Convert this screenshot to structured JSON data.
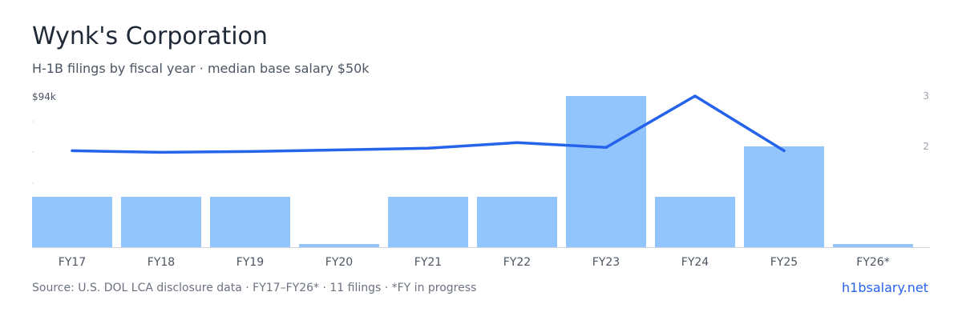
{
  "header": {
    "title": "Wynk's Corporation",
    "subtitle": "H-1B filings by fiscal year · median base salary $50k"
  },
  "footer": {
    "source": "Source: U.S. DOL LCA disclosure data · FY17–FY26* · 11 filings · *FY in progress",
    "brand": "h1bsalary.net"
  },
  "colors": {
    "bar": "#93c5fd",
    "line": "#2563eb"
  },
  "chart_data": {
    "type": "bar",
    "categories": [
      "FY17",
      "FY18",
      "FY19",
      "FY20",
      "FY21",
      "FY22",
      "FY23",
      "FY24",
      "FY25",
      "FY26*"
    ],
    "series": [
      {
        "type": "bar",
        "axis": "right",
        "values": [
          1,
          1,
          1,
          0,
          1,
          1,
          3,
          1,
          2,
          0
        ]
      },
      {
        "type": "line",
        "axis": "left",
        "values": [
          60,
          59,
          59.5,
          60.5,
          61.5,
          65,
          62,
          94,
          60,
          null
        ]
      }
    ],
    "left_axis": {
      "ylim": [
        0,
        94
      ],
      "tick_label": "$94k"
    },
    "right_axis": {
      "ylim": [
        0,
        3
      ],
      "ticks": [
        2,
        3
      ]
    },
    "legend": "none"
  }
}
